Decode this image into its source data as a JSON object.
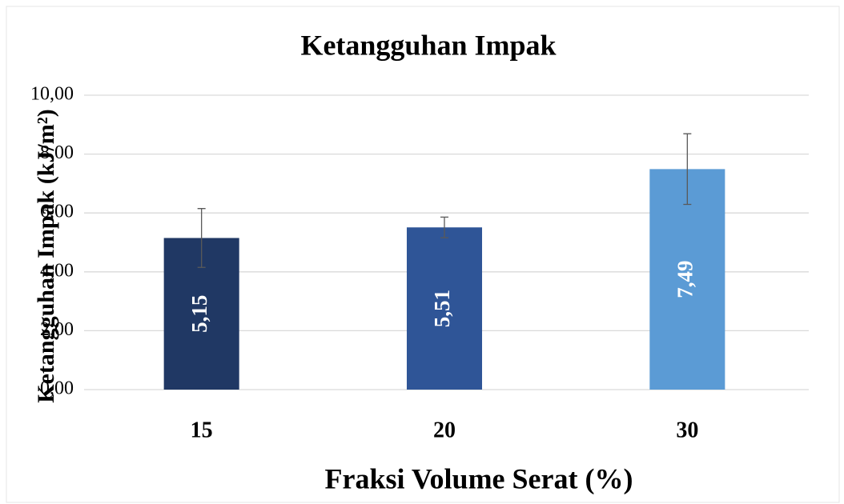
{
  "chart_data": {
    "type": "bar",
    "title": "Ketangguhan Impak",
    "x_label": "Fraksi Volume Serat (%)",
    "y_label": "Ketangguhan Impak (kJ/m²)",
    "categories": [
      "15",
      "20",
      "30"
    ],
    "values": [
      5.15,
      5.51,
      7.49
    ],
    "value_labels": [
      "5,15",
      "5,51",
      "7,49"
    ],
    "errors": [
      1.0,
      0.35,
      1.2
    ],
    "colors": [
      "#203864",
      "#2f5597",
      "#5b9bd5"
    ],
    "ylim": [
      0,
      10
    ],
    "yticks": [
      {
        "value": 0,
        "label": "0,00"
      },
      {
        "value": 2,
        "label": "2,00"
      },
      {
        "value": 4,
        "label": "4,00"
      },
      {
        "value": 6,
        "label": "6,00"
      },
      {
        "value": 8,
        "label": "8,00"
      },
      {
        "value": 10,
        "label": "10,00"
      }
    ],
    "grid": true
  }
}
